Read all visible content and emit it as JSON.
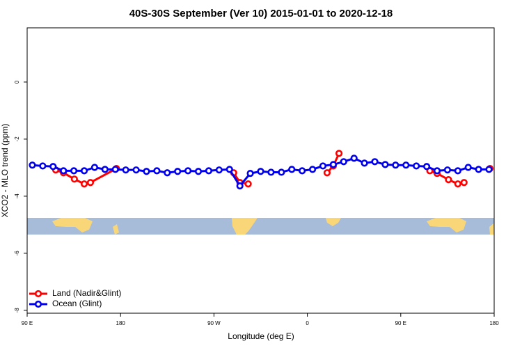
{
  "chart_data": {
    "type": "line",
    "title": "40S-30S September (Ver 10)   2015-01-01 to 2020-12-18",
    "xlabel": "Longitude (deg E)",
    "ylabel": "XCO2 - MLO trend (ppm)",
    "xlim": [
      90,
      540
    ],
    "ylim": [
      -8.1,
      1.9
    ],
    "xticks": [
      {
        "value": 90,
        "label": "90 E"
      },
      180,
      {
        "value": 270,
        "label": "90 W"
      },
      {
        "value": 360,
        "label": "0"
      },
      {
        "value": 450,
        "label": "90 E"
      },
      {
        "value": 540,
        "label": "180"
      }
    ],
    "yticks": [
      0,
      -2,
      -4,
      -6,
      -8
    ],
    "legend": "bottom-left",
    "series": [
      {
        "name": "Land (Nadir&Glint)",
        "color": "#ff0000",
        "x": [
          117.5,
          125,
          135.5,
          145,
          151,
          176,
          null,
          289,
          295,
          303,
          null,
          379,
          385,
          390.5,
          null,
          478,
          485,
          496,
          505,
          511,
          null,
          536
        ],
        "values": [
          -3.08,
          -3.18,
          -3.4,
          -3.57,
          -3.52,
          -3.03,
          null,
          -3.18,
          -3.52,
          -3.57,
          null,
          -3.18,
          -2.94,
          -2.5,
          null,
          -3.11,
          -3.2,
          -3.42,
          -3.57,
          -3.52,
          null,
          -3.03
        ]
      },
      {
        "name": "Ocean (Glint)",
        "color": "#0000ee",
        "x": [
          95,
          105,
          115,
          125,
          135,
          145,
          155,
          165,
          175,
          185,
          195,
          205,
          215,
          225,
          235,
          245,
          255,
          265,
          275,
          285,
          295,
          305,
          315,
          325,
          335,
          345,
          355,
          365,
          375,
          385,
          395,
          405,
          415,
          425,
          435,
          445,
          455,
          465,
          475,
          485,
          495,
          505,
          515,
          525,
          535
        ],
        "values": [
          -2.91,
          -2.94,
          -2.96,
          -3.11,
          -3.11,
          -3.11,
          -2.99,
          -3.06,
          -3.06,
          -3.08,
          -3.08,
          -3.13,
          -3.11,
          -3.18,
          -3.13,
          -3.11,
          -3.13,
          -3.11,
          -3.08,
          -3.06,
          -3.64,
          -3.2,
          -3.13,
          -3.16,
          -3.16,
          -3.06,
          -3.11,
          -3.06,
          -2.94,
          -2.89,
          -2.79,
          -2.67,
          -2.84,
          -2.79,
          -2.89,
          -2.91,
          -2.91,
          -2.94,
          -2.96,
          -3.11,
          -3.08,
          -3.11,
          -2.99,
          -3.06,
          -3.06
        ]
      }
    ]
  }
}
